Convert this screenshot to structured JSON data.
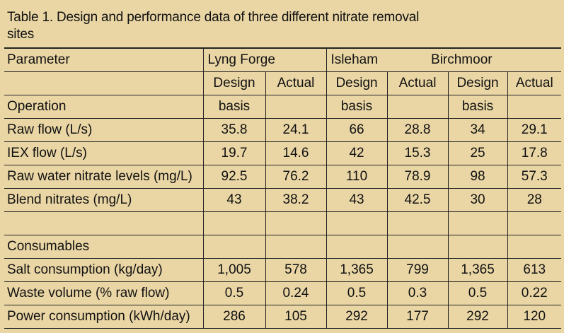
{
  "caption": "Table 1. Design and performance data of three different nitrate removal sites",
  "header": {
    "parameter": "Parameter",
    "sites": [
      "Lyng Forge",
      "Isleham",
      "Birchmoor"
    ],
    "design": "Design",
    "actual": "Actual",
    "basis": "basis",
    "operation": "Operation"
  },
  "rows": [
    {
      "label": "Raw flow (L/s)",
      "values": [
        "35.8",
        "24.1",
        "66",
        "28.8",
        "34",
        "29.1"
      ]
    },
    {
      "label": "IEX flow (L/s)",
      "values": [
        "19.7",
        "14.6",
        "42",
        "15.3",
        "25",
        "17.8"
      ]
    },
    {
      "label": "Raw water nitrate levels (mg/L)",
      "values": [
        "92.5",
        "76.2",
        "110",
        "78.9",
        "98",
        "57.3"
      ]
    },
    {
      "label": "Blend nitrates (mg/L)",
      "values": [
        "43",
        "38.2",
        "43",
        "42.5",
        "30",
        "28"
      ]
    },
    {
      "label": "",
      "values": [
        "",
        "",
        "",
        "",
        "",
        ""
      ]
    },
    {
      "label": "Consumables",
      "values": [
        "",
        "",
        "",
        "",
        "",
        ""
      ]
    },
    {
      "label": "Salt consumption (kg/day)",
      "values": [
        "1,005",
        "578",
        "1,365",
        "799",
        "1,365",
        "613"
      ]
    },
    {
      "label": "Waste volume (% raw flow)",
      "values": [
        "0.5",
        "0.24",
        "0.5",
        "0.3",
        "0.5",
        "0.22"
      ]
    },
    {
      "label": "Power consumption (kWh/day)",
      "values": [
        "286",
        "105",
        "292",
        "177",
        "292",
        "120"
      ]
    }
  ]
}
